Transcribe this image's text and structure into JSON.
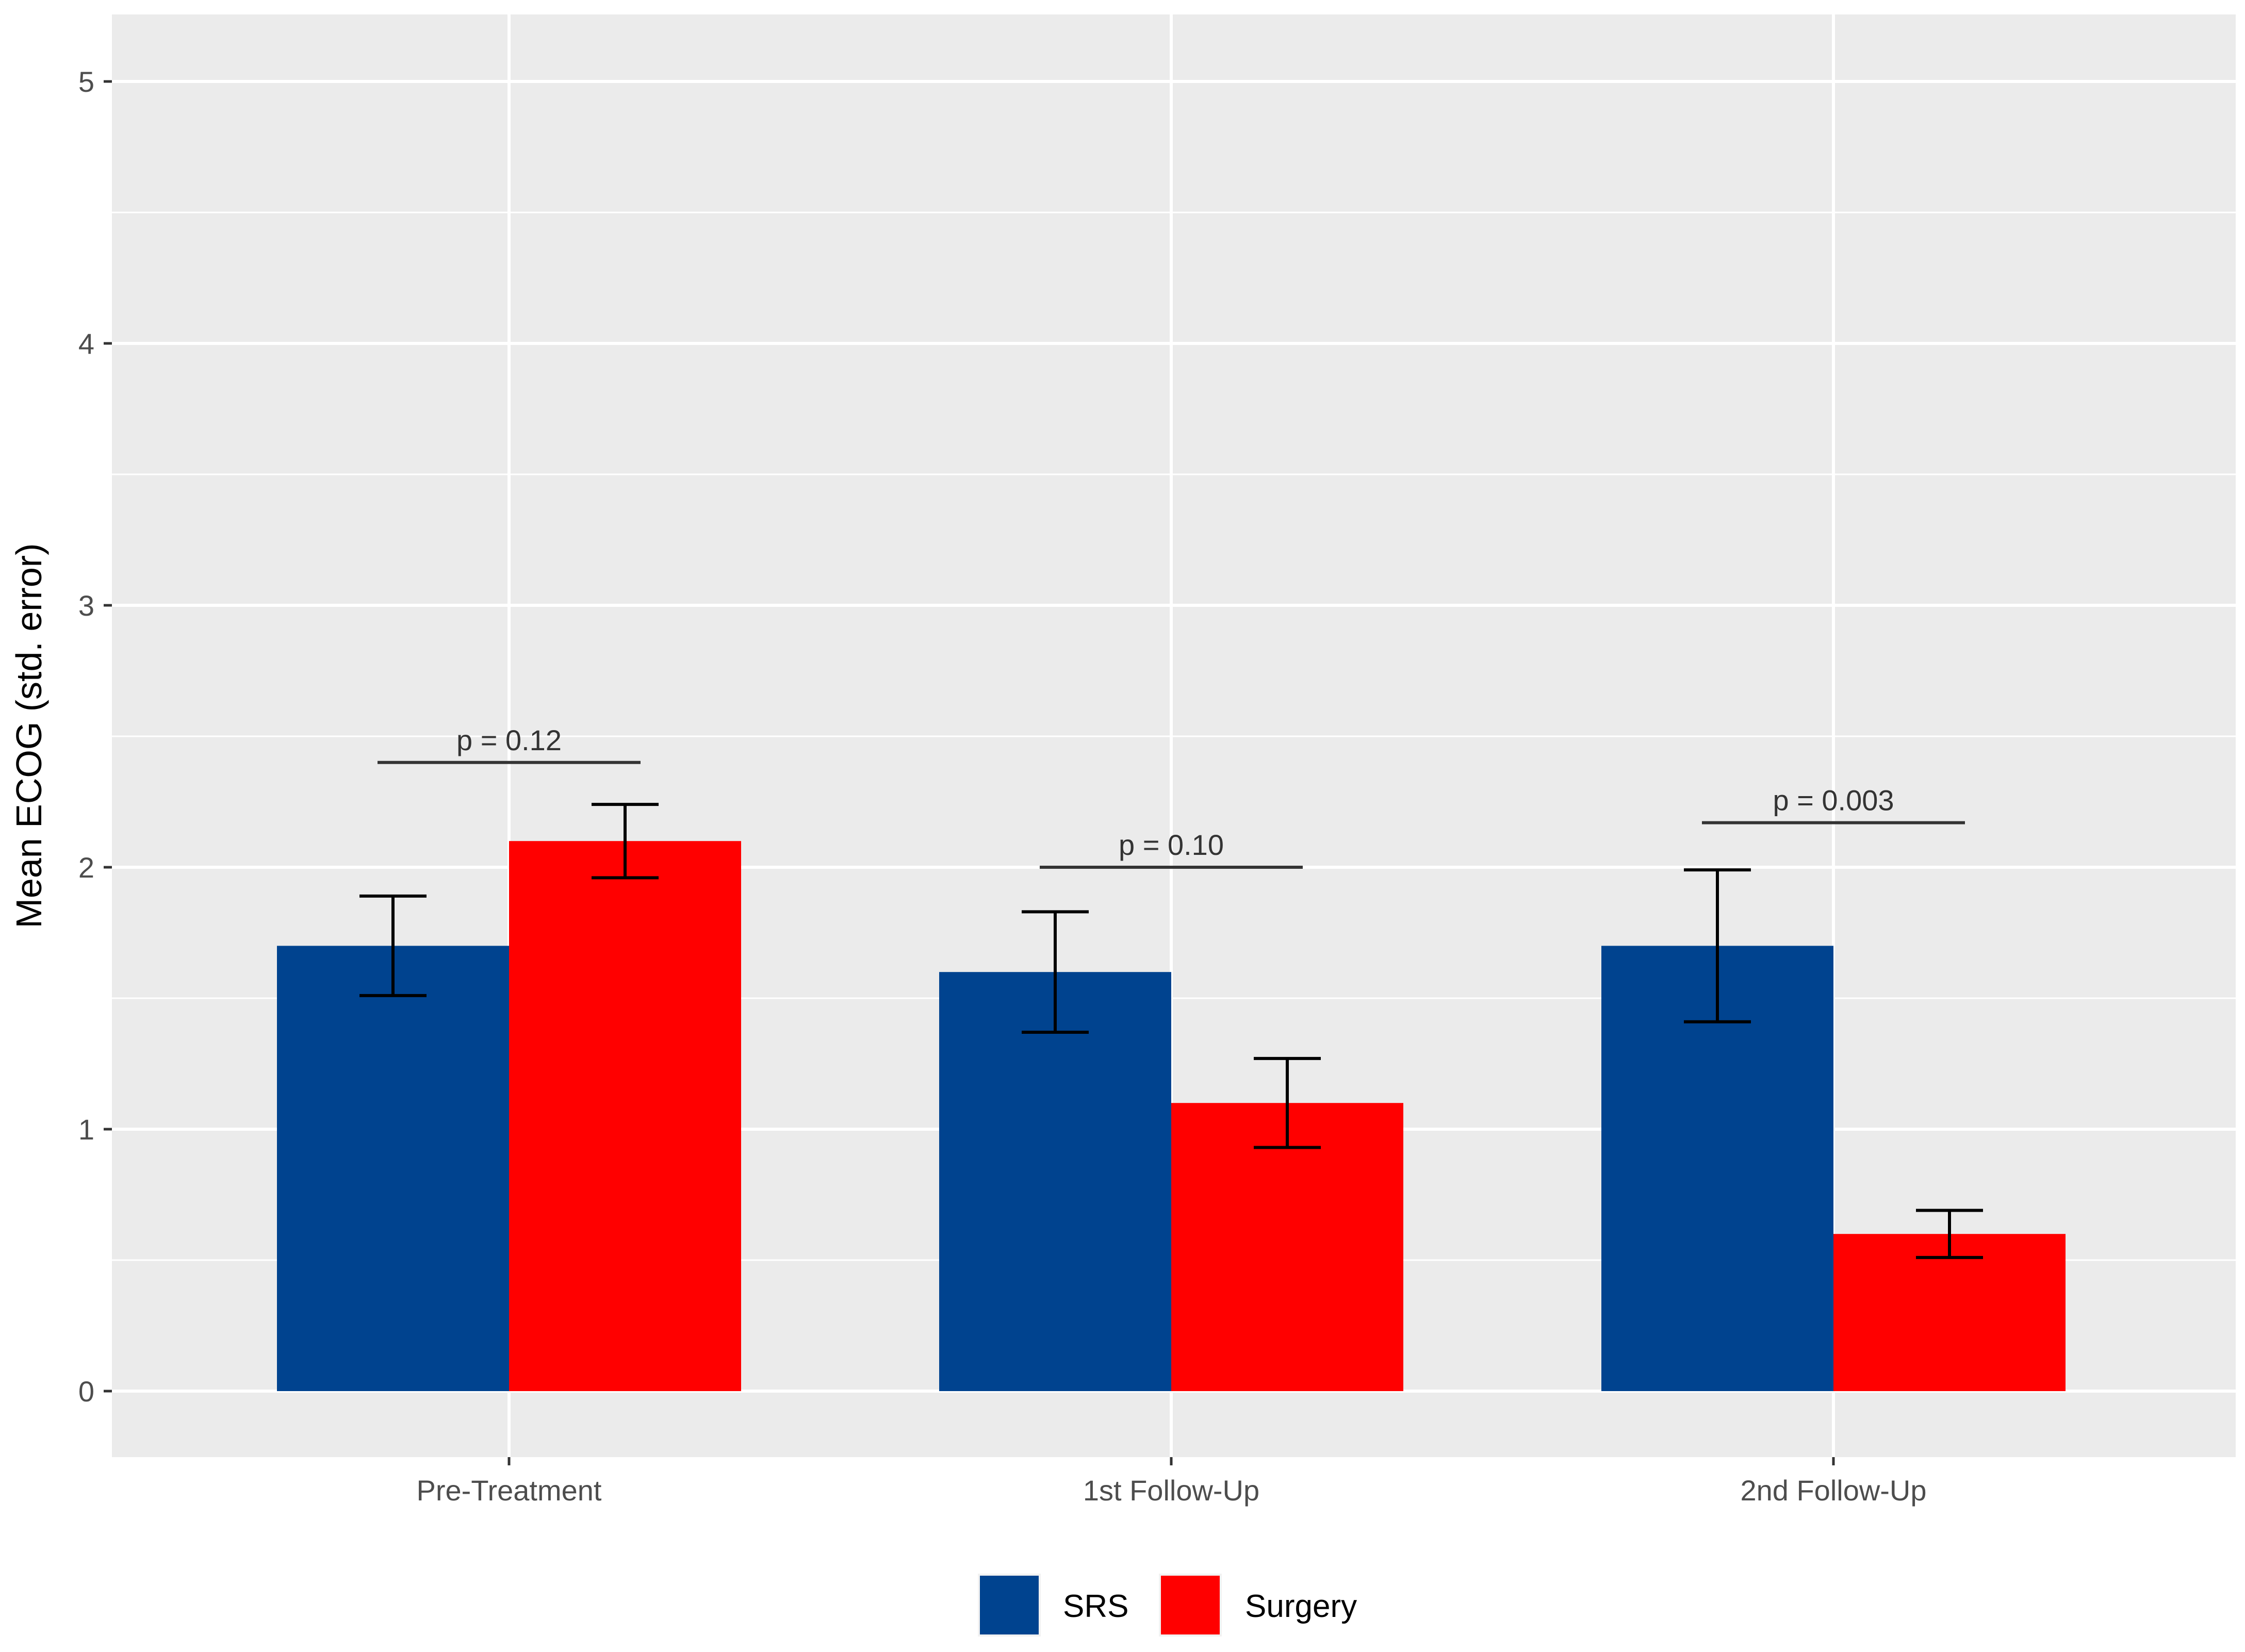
{
  "chart_data": {
    "type": "bar",
    "title": "",
    "xlabel": "",
    "ylabel": "Mean ECOG (std. error)",
    "ylim": [
      0,
      5
    ],
    "yticks": [
      0,
      1,
      2,
      3,
      4,
      5
    ],
    "grid": true,
    "legend_position": "bottom",
    "categories": [
      "Pre-Treatment",
      "1st Follow-Up",
      "2nd Follow-Up"
    ],
    "series": [
      {
        "name": "SRS",
        "color": "#00438F",
        "values": [
          1.7,
          1.6,
          1.7
        ],
        "errors": [
          0.19,
          0.23,
          0.29
        ]
      },
      {
        "name": "Surgery",
        "color": "#FF0000",
        "values": [
          2.1,
          1.1,
          0.6
        ],
        "errors": [
          0.14,
          0.17,
          0.09
        ]
      }
    ],
    "annotations": [
      {
        "category": "Pre-Treatment",
        "text": "p = 0.12",
        "y": 2.4
      },
      {
        "category": "1st Follow-Up",
        "text": "p = 0.10",
        "y": 2.0
      },
      {
        "category": "2nd Follow-Up",
        "text": "p = 0.003",
        "y": 2.17
      }
    ]
  }
}
